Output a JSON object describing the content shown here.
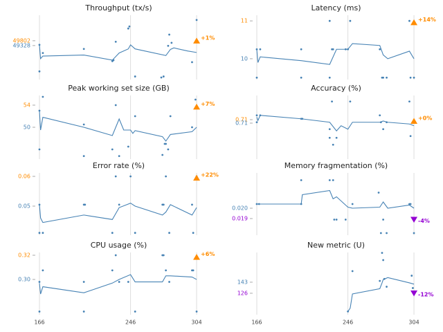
{
  "chart_data": [
    {
      "type": "line",
      "title": "Throughput (tx/s)",
      "color": "#4682b4",
      "xlim": [
        164.8,
        306.4
      ],
      "xticks": [
        166,
        246,
        304
      ],
      "ylim": [
        46000,
        52300
      ],
      "yticks": [
        49802,
        49328
      ],
      "ytick_colors": [
        "#ff8c00",
        "#4682b4"
      ],
      "x": [
        166,
        167,
        169,
        205,
        230,
        236,
        244,
        246,
        250,
        277,
        281,
        284,
        296,
        304
      ],
      "values": [
        49400,
        48050,
        48300,
        48400,
        47900,
        48600,
        49000,
        49400,
        49000,
        48350,
        48950,
        49100,
        48800,
        48650
      ],
      "scatter_x": [
        166,
        166,
        169,
        205,
        230,
        231,
        233,
        244,
        245,
        250,
        273,
        275,
        279,
        280,
        282,
        300,
        304
      ],
      "scatter_y": [
        49400,
        46800,
        48600,
        49000,
        47800,
        47900,
        49700,
        51000,
        51200,
        46300,
        46200,
        46300,
        49300,
        50400,
        49600,
        47700,
        51833
      ],
      "latest": 49802,
      "annotation": "+1%",
      "marker": "up",
      "marker_color": "#ff8c00"
    },
    {
      "type": "line",
      "title": "Latency (ms)",
      "color": "#4682b4",
      "xlim": [
        164.8,
        306.4
      ],
      "xticks": [
        166,
        246,
        304
      ],
      "ylim": [
        9.45,
        11.15
      ],
      "yticks": [
        11,
        10
      ],
      "ytick_colors": [
        "#ff8c00",
        "#4682b4"
      ],
      "x": [
        166,
        167,
        169,
        205,
        230,
        236,
        246,
        250,
        274,
        277,
        281,
        300,
        304
      ],
      "values": [
        10.25,
        9.9,
        10.05,
        9.95,
        9.85,
        10.25,
        10.25,
        10.4,
        10.35,
        10.1,
        10.0,
        10.2,
        10.0
      ],
      "scatter_x": [
        166,
        166,
        169,
        205,
        205,
        230,
        230,
        232,
        233,
        244,
        246,
        248,
        274,
        276,
        277,
        280,
        300,
        301,
        304
      ],
      "scatter_y": [
        10.25,
        9.5,
        10.25,
        10.25,
        9.5,
        11,
        9.5,
        10.25,
        10.25,
        10.25,
        10.25,
        11,
        10.25,
        9.5,
        9.5,
        9.5,
        11,
        9.5,
        9.5
      ],
      "latest": 10.96,
      "annotation": "+14%",
      "marker": "up",
      "marker_color": "#ff8c00"
    },
    {
      "type": "line",
      "title": "Peak working set size (GB)",
      "color": "#4682b4",
      "xlim": [
        164.8,
        306.4
      ],
      "xticks": [
        166,
        246,
        304
      ],
      "ylim": [
        44.25,
        55.75
      ],
      "yticks": [
        54,
        50
      ],
      "ytick_colors": [
        "#ff8c00",
        "#4682b4"
      ],
      "x": [
        166,
        167,
        169,
        205,
        230,
        236,
        240,
        246,
        248,
        250,
        274,
        277,
        281,
        300,
        304
      ],
      "values": [
        53,
        49.5,
        51.8,
        50,
        48.5,
        51.5,
        49.5,
        49.5,
        48.9,
        49.4,
        48.3,
        47.5,
        48.7,
        49.2,
        50
      ],
      "scatter_x": [
        166,
        166,
        169,
        205,
        205,
        230,
        233,
        236,
        244,
        250,
        274,
        276,
        277,
        279,
        281,
        300,
        303
      ],
      "scatter_y": [
        53,
        46,
        55.5,
        50.5,
        44.8,
        46,
        54,
        44.8,
        46.5,
        52,
        45,
        47,
        47,
        46,
        52,
        50,
        55
      ],
      "latest": 53.7,
      "annotation": "+7%",
      "marker": "up",
      "marker_color": "#ff8c00"
    },
    {
      "type": "line",
      "title": "Accuracy (%)",
      "color": "#4682b4",
      "xlim": [
        164.8,
        306.4
      ],
      "xticks": [
        166,
        246,
        304
      ],
      "ylim": [
        0.6892,
        0.726
      ],
      "yticks": [
        {
          "value": 0.712,
          "label": "0.71"
        },
        {
          "value": 0.71,
          "label": "0.71"
        }
      ],
      "ytick_colors": [
        "#ff8c00",
        "#4682b4"
      ],
      "x": [
        166,
        167,
        169,
        205,
        230,
        236,
        240,
        246,
        250,
        274,
        277,
        281,
        300,
        304
      ],
      "values": [
        0.7135,
        0.7115,
        0.7145,
        0.7125,
        0.7105,
        0.7055,
        0.7085,
        0.7065,
        0.7105,
        0.7105,
        0.7112,
        0.7105,
        0.7095,
        0.7085
      ],
      "scatter_x": [
        166,
        166,
        169,
        205,
        206,
        230,
        230,
        232,
        233,
        236,
        248,
        274,
        275,
        277,
        280,
        300,
        301,
        304
      ],
      "scatter_y": [
        0.7145,
        0.7105,
        0.7145,
        0.7125,
        0.7125,
        0.7065,
        0.7015,
        0.7225,
        0.6975,
        0.7015,
        0.7225,
        0.7145,
        0.7105,
        0.7065,
        0.7105,
        0.7225,
        0.7025,
        0.7105
      ],
      "latest": 0.7112,
      "annotation": "+0%",
      "marker": "up",
      "marker_color": "#ff8c00"
    },
    {
      "type": "line",
      "title": "Error rate (%)",
      "color": "#4682b4",
      "xlim": [
        164.8,
        306.4
      ],
      "xticks": [
        166,
        246,
        304
      ],
      "ylim": [
        0.04023,
        0.06116
      ],
      "yticks": [
        0.06,
        0.05
      ],
      "ytick_colors": [
        "#ff8c00",
        "#4682b4"
      ],
      "x": [
        166,
        167,
        169,
        205,
        230,
        236,
        246,
        250,
        274,
        277,
        281,
        300,
        304
      ],
      "values": [
        0.0505,
        0.046,
        0.0445,
        0.047,
        0.0455,
        0.0495,
        0.051,
        0.05,
        0.047,
        0.048,
        0.0505,
        0.047,
        0.0495
      ],
      "scatter_x": [
        166,
        166,
        169,
        205,
        206,
        230,
        233,
        236,
        246,
        250,
        274,
        275,
        277,
        280,
        300,
        301,
        304
      ],
      "scatter_y": [
        0.0505,
        0.041,
        0.041,
        0.0505,
        0.0505,
        0.041,
        0.06,
        0.0505,
        0.06,
        0.041,
        0.0505,
        0.0505,
        0.06,
        0.041,
        0.0505,
        0.041,
        0.06
      ],
      "latest": 0.0595,
      "annotation": "+22%",
      "marker": "up",
      "marker_color": "#ff8c00"
    },
    {
      "type": "line",
      "title": "Memory fragmentation (%)",
      "color": "#4682b4",
      "xlim": [
        164.8,
        306.4
      ],
      "xticks": [
        166,
        246,
        304
      ],
      "ylim": [
        0.0174,
        0.0234
      ],
      "yticks": [
        {
          "value": 0.02,
          "label": "0.020"
        },
        0.019
      ],
      "ytick_colors": [
        "#4682b4",
        "#9400d3"
      ],
      "x": [
        166,
        167,
        205,
        206,
        230,
        233,
        236,
        244,
        246,
        250,
        274,
        277,
        281,
        300,
        304
      ],
      "values": [
        0.0204,
        0.0204,
        0.0204,
        0.0213,
        0.0217,
        0.0209,
        0.0211,
        0.0203,
        0.0201,
        0.02,
        0.0201,
        0.0206,
        0.02,
        0.0203,
        0.02
      ],
      "scatter_x": [
        166,
        168,
        205,
        205,
        230,
        233,
        234,
        236,
        244,
        250,
        273,
        275,
        277,
        280,
        300,
        301,
        304
      ],
      "scatter_y": [
        0.0204,
        0.0204,
        0.0204,
        0.0227,
        0.0227,
        0.0227,
        0.0189,
        0.0189,
        0.0189,
        0.0204,
        0.0215,
        0.0176,
        0.0189,
        0.0176,
        0.0204,
        0.0204,
        0.0176
      ],
      "latest": 0.0189,
      "annotation": "-4%",
      "marker": "down",
      "marker_color": "#9400d3"
    },
    {
      "type": "line",
      "title": "CPU usage (%)",
      "color": "#4682b4",
      "xlim": [
        164.8,
        306.4
      ],
      "xticks": [
        166,
        246,
        304
      ],
      "ylim": [
        0.2709,
        0.3223
      ],
      "yticks": [
        0.32,
        {
          "value": 0.3,
          "label": "0.30"
        }
      ],
      "ytick_colors": [
        "#ff8c00",
        "#4682b4"
      ],
      "x": [
        166,
        167,
        169,
        205,
        230,
        236,
        246,
        250,
        274,
        277,
        281,
        300,
        304
      ],
      "values": [
        0.297,
        0.288,
        0.294,
        0.289,
        0.297,
        0.3,
        0.304,
        0.298,
        0.298,
        0.303,
        0.303,
        0.302,
        0.3
      ],
      "scatter_x": [
        166,
        166,
        169,
        205,
        205,
        230,
        233,
        236,
        244,
        250,
        274,
        275,
        277,
        280,
        300,
        301,
        304
      ],
      "scatter_y": [
        0.298,
        0.2735,
        0.3075,
        0.298,
        0.2735,
        0.3075,
        0.32,
        0.298,
        0.298,
        0.2735,
        0.32,
        0.32,
        0.3075,
        0.298,
        0.3075,
        0.3075,
        0.2735
      ],
      "latest": 0.3185,
      "annotation": "+6%",
      "marker": "up",
      "marker_color": "#ff8c00"
    },
    {
      "type": "line",
      "title": "New metric (U)",
      "color": "#4682b4",
      "xlim": [
        164.8,
        306.4
      ],
      "xticks": [
        166,
        246,
        304
      ],
      "ylim": [
        93,
        188.7
      ],
      "yticks": [
        143,
        126
      ],
      "ytick_colors": [
        "#4682b4",
        "#9400d3"
      ],
      "x": [
        246,
        248,
        250,
        274,
        276,
        277,
        281,
        300,
        304
      ],
      "values": [
        98,
        103,
        125,
        133,
        142,
        147,
        150,
        142,
        140
      ],
      "scatter_x": [
        246,
        250,
        274,
        276,
        277,
        278,
        280,
        302,
        303
      ],
      "scatter_y": [
        98,
        160,
        145,
        188,
        177,
        148,
        136,
        153,
        134
      ],
      "latest": 126,
      "annotation": "-12%",
      "marker": "down",
      "marker_color": "#9400d3"
    }
  ]
}
